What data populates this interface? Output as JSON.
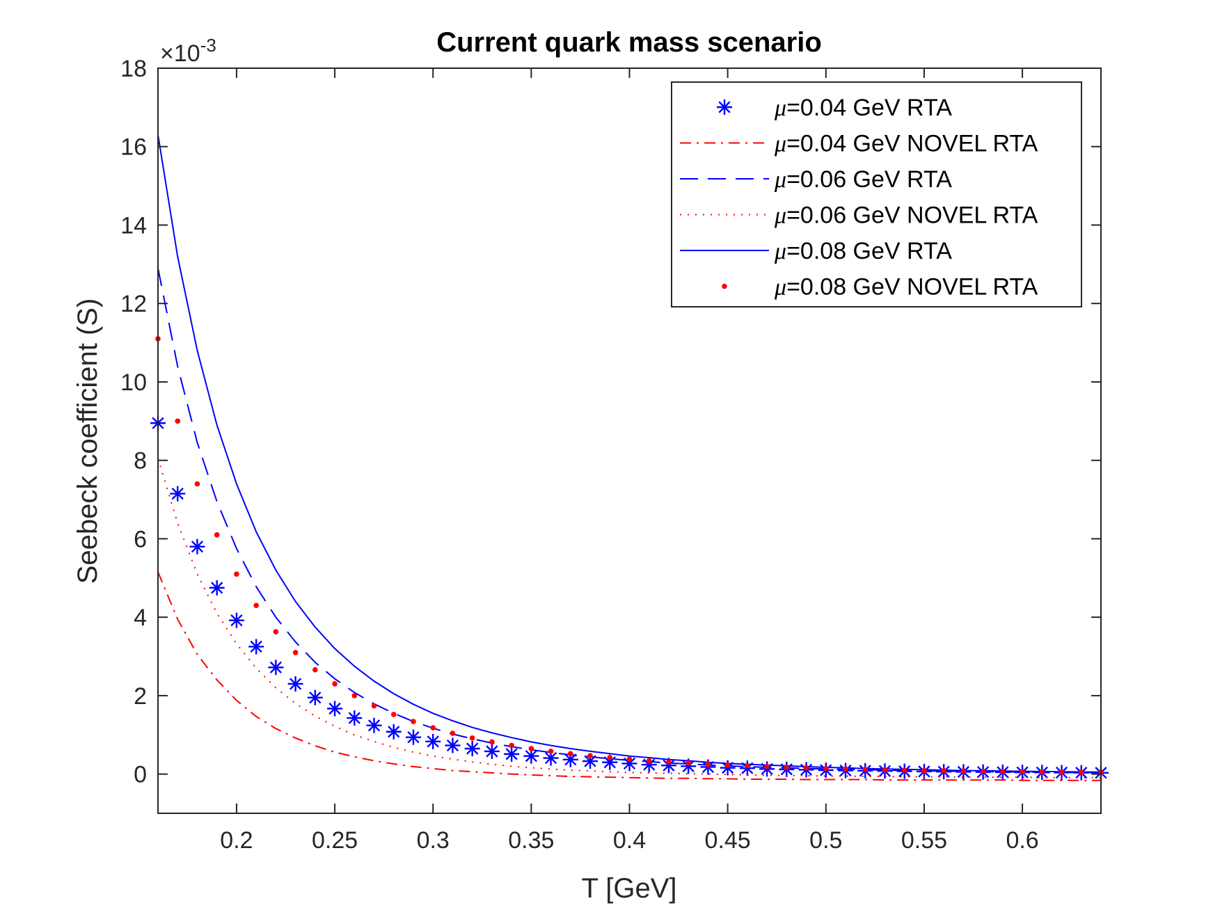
{
  "chart_data": {
    "type": "line",
    "title": "Current quark mass scenario",
    "xlabel": "T [GeV]",
    "ylabel": "Seebeck coefficient (S)",
    "y_exponent_label": "×10",
    "y_exponent_power": "-3",
    "xlim": [
      0.16,
      0.64
    ],
    "ylim": [
      -1,
      18
    ],
    "xticks": [
      0.2,
      0.25,
      0.3,
      0.35,
      0.4,
      0.45,
      0.5,
      0.55,
      0.6
    ],
    "xtick_labels": [
      "0.2",
      "0.25",
      "0.3",
      "0.35",
      "0.4",
      "0.45",
      "0.5",
      "0.55",
      "0.6"
    ],
    "yticks": [
      0,
      2,
      4,
      6,
      8,
      10,
      12,
      14,
      16,
      18
    ],
    "ytick_labels": [
      "0",
      "2",
      "4",
      "6",
      "8",
      "10",
      "12",
      "14",
      "16",
      "18"
    ],
    "legend_position": "top-right",
    "x": [
      0.16,
      0.17,
      0.18,
      0.19,
      0.2,
      0.21,
      0.22,
      0.23,
      0.24,
      0.25,
      0.26,
      0.27,
      0.28,
      0.29,
      0.3,
      0.31,
      0.32,
      0.33,
      0.34,
      0.35,
      0.36,
      0.37,
      0.38,
      0.39,
      0.4,
      0.41,
      0.42,
      0.43,
      0.44,
      0.45,
      0.46,
      0.47,
      0.48,
      0.49,
      0.5,
      0.51,
      0.52,
      0.53,
      0.54,
      0.55,
      0.56,
      0.57,
      0.58,
      0.59,
      0.6,
      0.61,
      0.62,
      0.63,
      0.64
    ],
    "series": [
      {
        "name": "μ=0.04 GeV  RTA",
        "mu_symbol": "μ",
        "label_rest": "=0.04 GeV  RTA",
        "color": "#0000ff",
        "style": "star",
        "values": [
          8.95,
          7.15,
          5.8,
          4.75,
          3.92,
          3.25,
          2.72,
          2.3,
          1.95,
          1.67,
          1.43,
          1.24,
          1.08,
          0.94,
          0.83,
          0.73,
          0.65,
          0.58,
          0.51,
          0.46,
          0.41,
          0.37,
          0.33,
          0.3,
          0.27,
          0.24,
          0.22,
          0.2,
          0.18,
          0.16,
          0.15,
          0.13,
          0.12,
          0.11,
          0.1,
          0.09,
          0.085,
          0.078,
          0.072,
          0.066,
          0.061,
          0.056,
          0.052,
          0.048,
          0.044,
          0.041,
          0.038,
          0.035,
          0.033
        ]
      },
      {
        "name": "μ=0.04 GeV NOVEL RTA",
        "mu_symbol": "μ",
        "label_rest": "=0.04 GeV NOVEL RTA",
        "color": "#ff0000",
        "style": "dashdot",
        "values": [
          5.15,
          3.95,
          3.05,
          2.4,
          1.88,
          1.47,
          1.16,
          0.92,
          0.72,
          0.56,
          0.44,
          0.34,
          0.26,
          0.19,
          0.14,
          0.09,
          0.06,
          0.03,
          0.0,
          -0.02,
          -0.04,
          -0.06,
          -0.07,
          -0.08,
          -0.09,
          -0.1,
          -0.11,
          -0.11,
          -0.12,
          -0.12,
          -0.13,
          -0.13,
          -0.13,
          -0.14,
          -0.14,
          -0.14,
          -0.14,
          -0.15,
          -0.15,
          -0.15,
          -0.15,
          -0.15,
          -0.15,
          -0.15,
          -0.16,
          -0.16,
          -0.16,
          -0.16,
          -0.16
        ]
      },
      {
        "name": "μ=0.06 GeV  RTA",
        "mu_symbol": "μ",
        "label_rest": "=0.06 GeV  RTA",
        "color": "#0000ff",
        "style": "dashed",
        "values": [
          12.9,
          10.4,
          8.45,
          6.95,
          5.75,
          4.78,
          4.0,
          3.37,
          2.85,
          2.43,
          2.08,
          1.79,
          1.55,
          1.34,
          1.17,
          1.02,
          0.9,
          0.79,
          0.7,
          0.62,
          0.55,
          0.49,
          0.44,
          0.39,
          0.35,
          0.32,
          0.28,
          0.26,
          0.23,
          0.21,
          0.19,
          0.17,
          0.16,
          0.14,
          0.13,
          0.12,
          0.11,
          0.1,
          0.09,
          0.08,
          0.075,
          0.068,
          0.062,
          0.057,
          0.052,
          0.048,
          0.044,
          0.04,
          0.037
        ]
      },
      {
        "name": "μ=0.06 GeV NOVEL RTA",
        "mu_symbol": "μ",
        "label_rest": "=0.06 GeV NOVEL RTA",
        "color": "#ff0000",
        "style": "dotted",
        "values": [
          8.05,
          6.4,
          5.1,
          4.1,
          3.32,
          2.7,
          2.2,
          1.8,
          1.48,
          1.22,
          1.0,
          0.83,
          0.68,
          0.56,
          0.46,
          0.38,
          0.31,
          0.25,
          0.2,
          0.16,
          0.13,
          0.1,
          0.08,
          0.06,
          0.04,
          0.03,
          0.02,
          0.01,
          0.0,
          -0.01,
          -0.02,
          -0.03,
          -0.04,
          -0.04,
          -0.05,
          -0.05,
          -0.06,
          -0.06,
          -0.07,
          -0.07,
          -0.07,
          -0.08,
          -0.08,
          -0.08,
          -0.08,
          -0.09,
          -0.09,
          -0.09,
          -0.09
        ]
      },
      {
        "name": "μ=0.08 GeV  RTA",
        "mu_symbol": "μ",
        "label_rest": "=0.08 GeV  RTA",
        "color": "#0000ff",
        "style": "solid",
        "values": [
          16.3,
          13.2,
          10.8,
          8.9,
          7.4,
          6.18,
          5.2,
          4.4,
          3.75,
          3.2,
          2.75,
          2.37,
          2.05,
          1.78,
          1.55,
          1.36,
          1.19,
          1.05,
          0.93,
          0.82,
          0.73,
          0.65,
          0.58,
          0.52,
          0.46,
          0.42,
          0.37,
          0.34,
          0.3,
          0.27,
          0.25,
          0.23,
          0.21,
          0.19,
          0.17,
          0.16,
          0.14,
          0.13,
          0.12,
          0.11,
          0.1,
          0.09,
          0.085,
          0.078,
          0.072,
          0.066,
          0.061,
          0.056,
          0.052
        ]
      },
      {
        "name": "μ=0.08 GeV NOVEL RTA",
        "mu_symbol": "μ",
        "label_rest": "=0.08 GeV NOVEL RTA",
        "color": "#ff0000",
        "style": "point",
        "values": [
          11.1,
          9.0,
          7.4,
          6.1,
          5.1,
          4.3,
          3.63,
          3.1,
          2.66,
          2.3,
          2.0,
          1.74,
          1.52,
          1.34,
          1.18,
          1.04,
          0.92,
          0.82,
          0.73,
          0.65,
          0.58,
          0.52,
          0.47,
          0.42,
          0.38,
          0.34,
          0.31,
          0.28,
          0.25,
          0.23,
          0.21,
          0.19,
          0.17,
          0.16,
          0.14,
          0.13,
          0.12,
          0.11,
          0.1,
          0.09,
          0.085,
          0.078,
          0.071,
          0.065,
          0.06,
          0.055,
          0.051,
          0.047,
          0.043
        ]
      }
    ]
  }
}
